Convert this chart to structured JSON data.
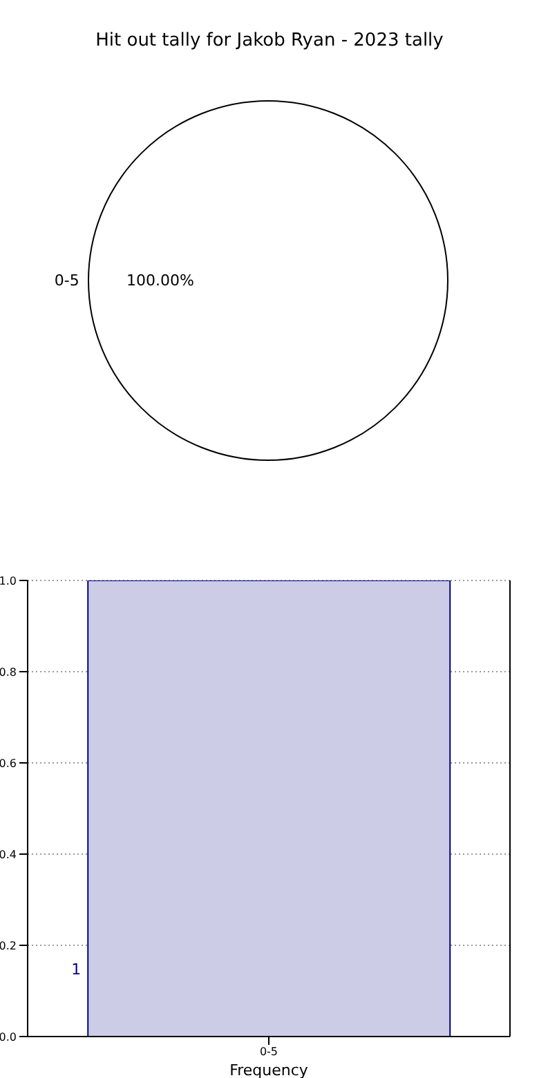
{
  "chart_data": [
    {
      "type": "pie",
      "title": "Hit out tally for Jakob Ryan - 2023 tally",
      "categories": [
        "0-5"
      ],
      "values": [
        100
      ],
      "colors": [
        "#ffffff"
      ],
      "value_labels": [
        "100.00%"
      ]
    },
    {
      "type": "bar",
      "categories": [
        "0-5"
      ],
      "values": [
        1
      ],
      "color": "#cccce6",
      "value_labels": [
        "1"
      ],
      "xlabel": "Frequency",
      "ylim": [
        0,
        1
      ],
      "yticks": [
        {
          "value": 0,
          "label": "0.0"
        },
        {
          "value": 0.2,
          "label": "0.2"
        },
        {
          "value": 0.4,
          "label": "0.4"
        },
        {
          "value": 0.6,
          "label": "0.6"
        },
        {
          "value": 0.8,
          "label": "0.8"
        },
        {
          "value": 1,
          "label": "1.0"
        }
      ],
      "grid": true
    }
  ]
}
